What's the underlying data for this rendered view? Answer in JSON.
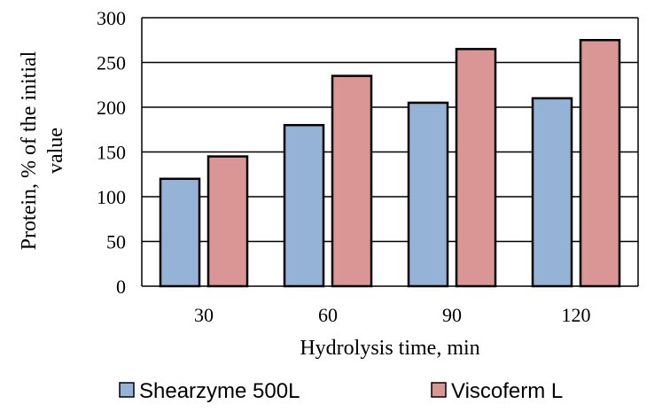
{
  "chart_data": {
    "type": "bar",
    "categories": [
      "30",
      "60",
      "90",
      "120"
    ],
    "series": [
      {
        "name": "Shearzyme 500L",
        "values": [
          120,
          180,
          205,
          210
        ],
        "color": "#95b3d7"
      },
      {
        "name": "Viscoferm L",
        "values": [
          145,
          235,
          265,
          275
        ],
        "color": "#d99694"
      }
    ],
    "xlabel": "Hydrolysis time, min",
    "ylabel_lines": [
      "Protein, % of the initial",
      "value"
    ],
    "ylim": [
      0,
      300
    ],
    "yticks": [
      0,
      50,
      100,
      150,
      200,
      250,
      300
    ],
    "grid": true,
    "legend_position": "bottom"
  }
}
